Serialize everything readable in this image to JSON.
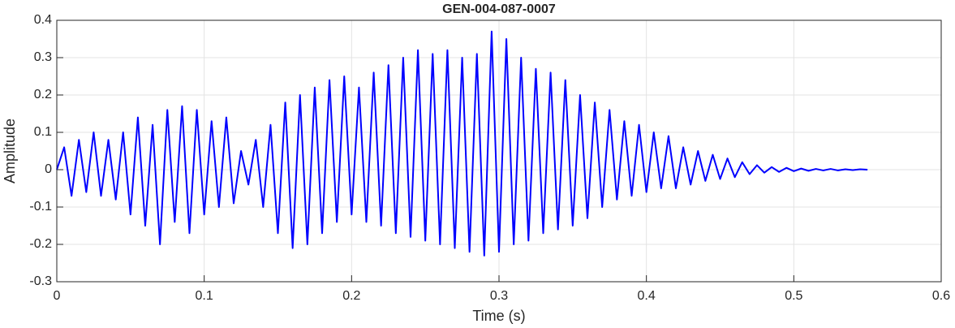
{
  "chart_data": {
    "type": "line",
    "title": "GEN-004-087-0007",
    "x_label": "Time (s)",
    "y_label": "Amplitude",
    "x": [
      0,
      0.005,
      0.01,
      0.015,
      0.02,
      0.025,
      0.03,
      0.035,
      0.04,
      0.045,
      0.05,
      0.055,
      0.06,
      0.065,
      0.07,
      0.075,
      0.08,
      0.085,
      0.09,
      0.095,
      0.1,
      0.105,
      0.11,
      0.115,
      0.12,
      0.125,
      0.13,
      0.135,
      0.14,
      0.145,
      0.15,
      0.155,
      0.16,
      0.165,
      0.17,
      0.175,
      0.18,
      0.185,
      0.19,
      0.195,
      0.2,
      0.205,
      0.21,
      0.215,
      0.22,
      0.225,
      0.23,
      0.235,
      0.24,
      0.245,
      0.25,
      0.255,
      0.26,
      0.265,
      0.27,
      0.275,
      0.28,
      0.285,
      0.29,
      0.295,
      0.3,
      0.305,
      0.31,
      0.315,
      0.32,
      0.325,
      0.33,
      0.335,
      0.34,
      0.345,
      0.35,
      0.355,
      0.36,
      0.365,
      0.37,
      0.375,
      0.38,
      0.385,
      0.39,
      0.395,
      0.4,
      0.405,
      0.41,
      0.415,
      0.42,
      0.425,
      0.43,
      0.435,
      0.44,
      0.445,
      0.45,
      0.455,
      0.46,
      0.465,
      0.47,
      0.475,
      0.48,
      0.485,
      0.49,
      0.495,
      0.5,
      0.505,
      0.51,
      0.515,
      0.52,
      0.525,
      0.53,
      0.535,
      0.54,
      0.545,
      0.55
    ],
    "values": [
      0,
      0.06,
      -0.07,
      0.08,
      -0.06,
      0.1,
      -0.07,
      0.08,
      -0.08,
      0.1,
      -0.12,
      0.14,
      -0.15,
      0.12,
      -0.2,
      0.16,
      -0.14,
      0.17,
      -0.17,
      0.16,
      -0.12,
      0.13,
      -0.1,
      0.14,
      -0.09,
      0.05,
      -0.04,
      0.08,
      -0.1,
      0.12,
      -0.17,
      0.18,
      -0.21,
      0.2,
      -0.2,
      0.22,
      -0.17,
      0.24,
      -0.14,
      0.25,
      -0.12,
      0.22,
      -0.14,
      0.26,
      -0.15,
      0.28,
      -0.17,
      0.3,
      -0.18,
      0.32,
      -0.19,
      0.31,
      -0.2,
      0.32,
      -0.21,
      0.3,
      -0.22,
      0.31,
      -0.23,
      0.37,
      -0.22,
      0.35,
      -0.2,
      0.3,
      -0.19,
      0.27,
      -0.17,
      0.26,
      -0.16,
      0.24,
      -0.15,
      0.2,
      -0.13,
      0.18,
      -0.1,
      0.16,
      -0.08,
      0.13,
      -0.07,
      0.12,
      -0.06,
      0.1,
      -0.05,
      0.09,
      -0.05,
      0.06,
      -0.04,
      0.05,
      -0.03,
      0.04,
      -0.025,
      0.03,
      -0.02,
      0.02,
      -0.012,
      0.012,
      -0.008,
      0.007,
      -0.006,
      0.005,
      -0.004,
      0.003,
      -0.003,
      0.002,
      -0.002,
      0.002,
      -0.002,
      0.001,
      -0.001,
      0.001,
      0
    ],
    "color": "#0000ff",
    "xlim": [
      0,
      0.6
    ],
    "ylim": [
      -0.3,
      0.4
    ],
    "xticks": [
      0,
      0.1,
      0.2,
      0.3,
      0.4,
      0.5,
      0.6
    ],
    "yticks": [
      -0.3,
      -0.2,
      -0.1,
      0,
      0.1,
      0.2,
      0.3,
      0.4
    ],
    "grid": true
  }
}
